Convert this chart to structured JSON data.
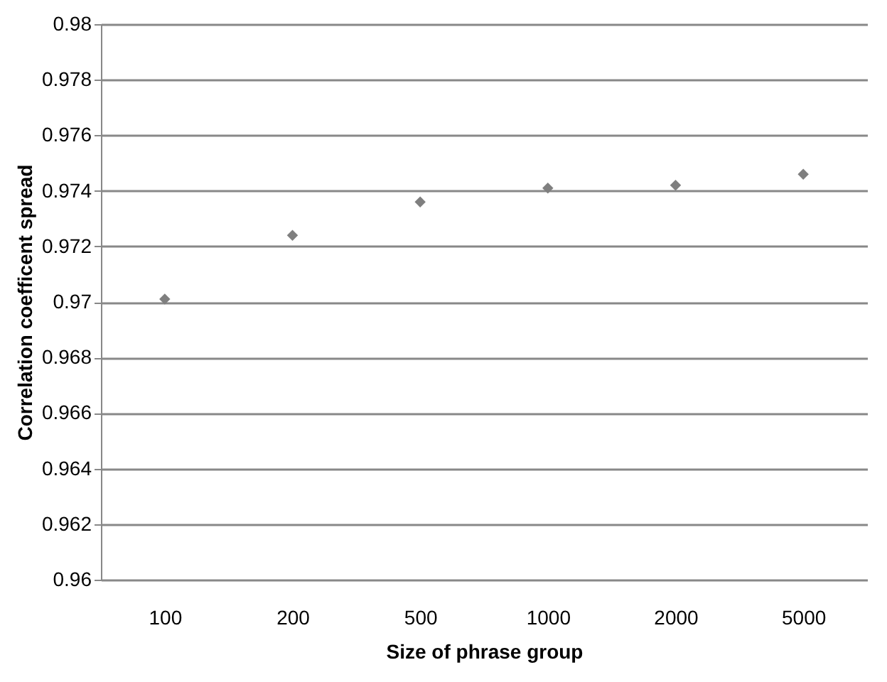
{
  "chart_data": {
    "type": "scatter",
    "xlabel": "Size of phrase group",
    "ylabel": "Correlation coefficent  spread",
    "categories": [
      "100",
      "200",
      "500",
      "1000",
      "2000",
      "5000"
    ],
    "series": [
      {
        "color": "#7f7f7f",
        "values": [
          0.9701,
          0.9724,
          0.9736,
          0.9741,
          0.9742,
          0.9746
        ]
      }
    ],
    "ylim": [
      0.96,
      0.98
    ],
    "yticks": [
      0.96,
      0.962,
      0.964,
      0.966,
      0.968,
      0.97,
      0.972,
      0.974,
      0.976,
      0.978,
      0.98
    ],
    "grid": "y",
    "marker": "diamond",
    "legend": false
  }
}
